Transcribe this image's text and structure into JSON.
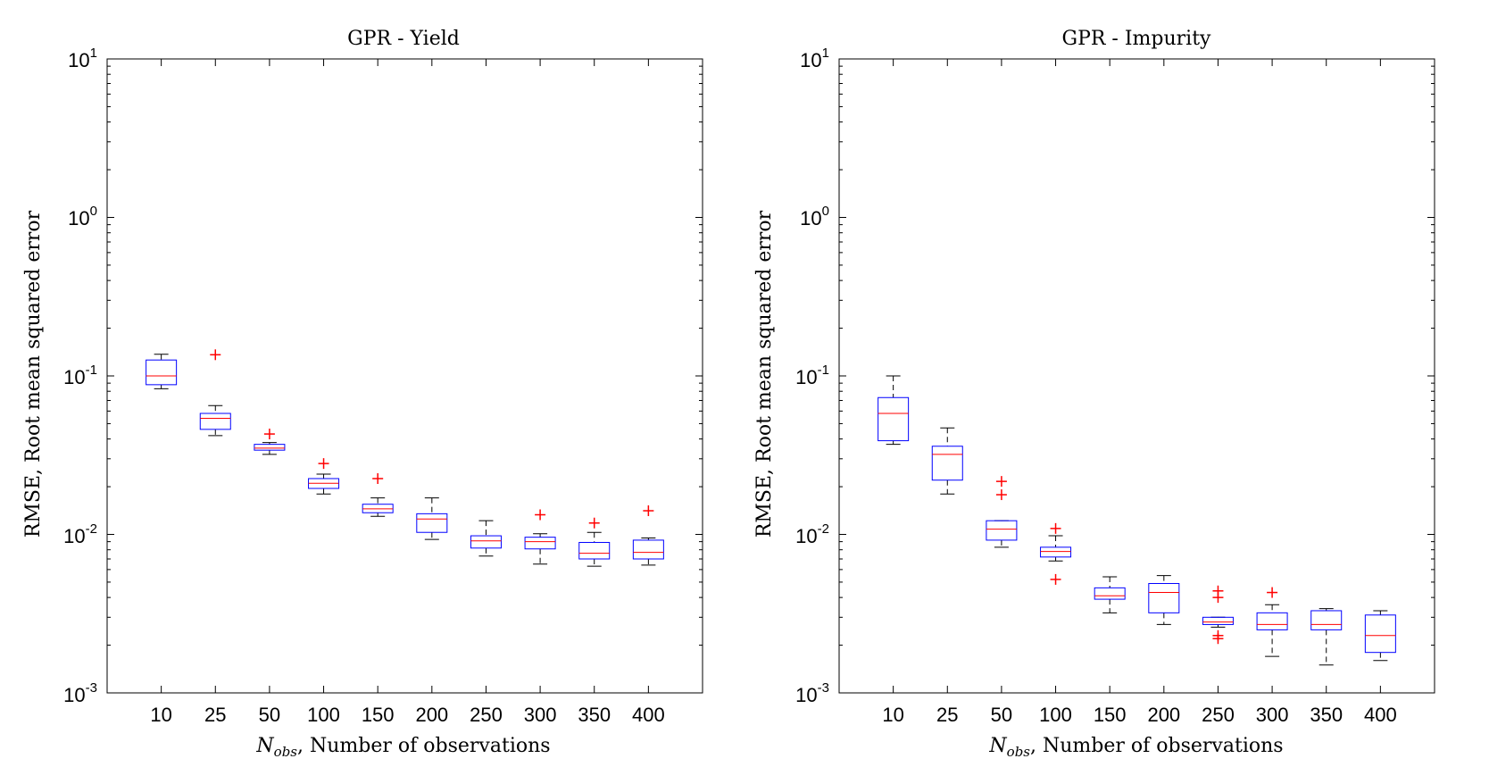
{
  "chart_data": [
    {
      "type": "box",
      "title": "GPR - Yield",
      "xlabel": {
        "symbol": "N",
        "subscript": "obs",
        "text": ", Number of observations"
      },
      "ylabel": "RMSE, Root mean squared error",
      "yscale": "log",
      "ylim": [
        0.001,
        10
      ],
      "yticks": [
        {
          "base": "10",
          "exp": "-3"
        },
        {
          "base": "10",
          "exp": "-2"
        },
        {
          "base": "10",
          "exp": "-1"
        },
        {
          "base": "10",
          "exp": "0"
        },
        {
          "base": "10",
          "exp": "1"
        }
      ],
      "categories": [
        "10",
        "25",
        "50",
        "100",
        "150",
        "200",
        "250",
        "300",
        "350",
        "400"
      ],
      "boxes": [
        {
          "whisker_low": 0.083,
          "q1": 0.088,
          "median": 0.1,
          "q3": 0.126,
          "whisker_high": 0.137,
          "outliers": []
        },
        {
          "whisker_low": 0.042,
          "q1": 0.046,
          "median": 0.054,
          "q3": 0.058,
          "whisker_high": 0.065,
          "outliers": [
            0.136
          ]
        },
        {
          "whisker_low": 0.032,
          "q1": 0.034,
          "median": 0.035,
          "q3": 0.037,
          "whisker_high": 0.038,
          "outliers": [
            0.043
          ]
        },
        {
          "whisker_low": 0.018,
          "q1": 0.0195,
          "median": 0.021,
          "q3": 0.0225,
          "whisker_high": 0.024,
          "outliers": [
            0.028
          ]
        },
        {
          "whisker_low": 0.013,
          "q1": 0.0137,
          "median": 0.0145,
          "q3": 0.0155,
          "whisker_high": 0.017,
          "outliers": [
            0.0225
          ]
        },
        {
          "whisker_low": 0.0093,
          "q1": 0.0103,
          "median": 0.0125,
          "q3": 0.0135,
          "whisker_high": 0.017,
          "outliers": []
        },
        {
          "whisker_low": 0.0073,
          "q1": 0.0082,
          "median": 0.0091,
          "q3": 0.0098,
          "whisker_high": 0.0122,
          "outliers": []
        },
        {
          "whisker_low": 0.0065,
          "q1": 0.0081,
          "median": 0.009,
          "q3": 0.0096,
          "whisker_high": 0.0101,
          "outliers": [
            0.0133
          ]
        },
        {
          "whisker_low": 0.0063,
          "q1": 0.007,
          "median": 0.0076,
          "q3": 0.0089,
          "whisker_high": 0.0103,
          "outliers": [
            0.0118
          ]
        },
        {
          "whisker_low": 0.0064,
          "q1": 0.007,
          "median": 0.0077,
          "q3": 0.0092,
          "whisker_high": 0.0095,
          "outliers": [
            0.0141
          ]
        }
      ]
    },
    {
      "type": "box",
      "title": "GPR - Impurity",
      "xlabel": {
        "symbol": "N",
        "subscript": "obs",
        "text": ", Number of observations"
      },
      "ylabel": "RMSE, Root mean squared error",
      "yscale": "log",
      "ylim": [
        0.001,
        10
      ],
      "yticks": [
        {
          "base": "10",
          "exp": "-3"
        },
        {
          "base": "10",
          "exp": "-2"
        },
        {
          "base": "10",
          "exp": "-1"
        },
        {
          "base": "10",
          "exp": "0"
        },
        {
          "base": "10",
          "exp": "1"
        }
      ],
      "categories": [
        "10",
        "25",
        "50",
        "100",
        "150",
        "200",
        "250",
        "300",
        "350",
        "400"
      ],
      "boxes": [
        {
          "whisker_low": 0.037,
          "q1": 0.039,
          "median": 0.058,
          "q3": 0.073,
          "whisker_high": 0.1,
          "outliers": []
        },
        {
          "whisker_low": 0.018,
          "q1": 0.022,
          "median": 0.032,
          "q3": 0.036,
          "whisker_high": 0.047,
          "outliers": []
        },
        {
          "whisker_low": 0.0083,
          "q1": 0.0092,
          "median": 0.0108,
          "q3": 0.0122,
          "whisker_high": 0.0122,
          "outliers": [
            0.0178,
            0.0216
          ]
        },
        {
          "whisker_low": 0.0068,
          "q1": 0.0072,
          "median": 0.0078,
          "q3": 0.0083,
          "whisker_high": 0.0098,
          "outliers": [
            0.0052,
            0.0109
          ]
        },
        {
          "whisker_low": 0.0032,
          "q1": 0.0039,
          "median": 0.0041,
          "q3": 0.0046,
          "whisker_high": 0.0054,
          "outliers": []
        },
        {
          "whisker_low": 0.0027,
          "q1": 0.0032,
          "median": 0.0043,
          "q3": 0.0049,
          "whisker_high": 0.0055,
          "outliers": []
        },
        {
          "whisker_low": 0.0026,
          "q1": 0.0027,
          "median": 0.0028,
          "q3": 0.003,
          "whisker_high": 0.003,
          "outliers": [
            0.0022,
            0.0023,
            0.004,
            0.0044
          ]
        },
        {
          "whisker_low": 0.0017,
          "q1": 0.0025,
          "median": 0.0027,
          "q3": 0.0032,
          "whisker_high": 0.0036,
          "outliers": [
            0.0043
          ]
        },
        {
          "whisker_low": 0.0015,
          "q1": 0.0025,
          "median": 0.0027,
          "q3": 0.0033,
          "whisker_high": 0.0034,
          "outliers": []
        },
        {
          "whisker_low": 0.0016,
          "q1": 0.0018,
          "median": 0.0023,
          "q3": 0.0031,
          "whisker_high": 0.0033,
          "outliers": []
        }
      ]
    }
  ],
  "colors": {
    "box": "#0000ff",
    "median": "#ff0000",
    "whisker": "#000000",
    "outlier": "#ff0000",
    "axis": "#000000"
  }
}
